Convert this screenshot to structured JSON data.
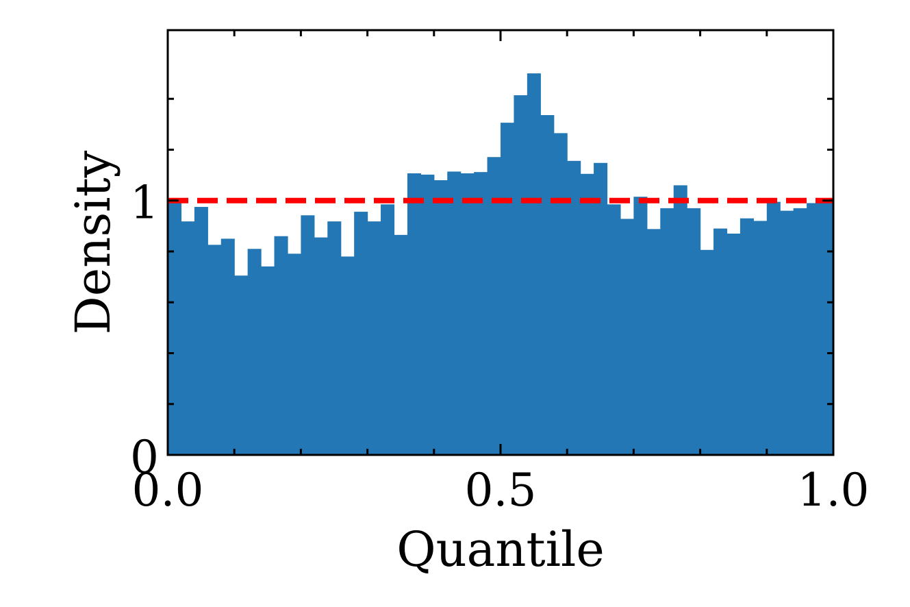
{
  "chart_data": {
    "type": "bar",
    "title": "",
    "xlabel": "Quantile",
    "ylabel": "Density",
    "xlim": [
      0.0,
      1.0
    ],
    "ylim": [
      0.0,
      1.67
    ],
    "grid": false,
    "legend": "none",
    "bin_count": 50,
    "bin_width": 0.02,
    "x_ticks": [
      {
        "value": 0.0,
        "label": "0.0"
      },
      {
        "value": 0.5,
        "label": "0.5"
      },
      {
        "value": 1.0,
        "label": "1.0"
      }
    ],
    "y_ticks": [
      {
        "value": 0,
        "label": "0"
      },
      {
        "value": 1,
        "label": "1"
      }
    ],
    "x_minor_ticks": [
      0.1,
      0.2,
      0.3,
      0.4,
      0.6,
      0.7,
      0.8,
      0.9
    ],
    "y_minor_ticks": [
      0.2,
      0.4,
      0.6,
      0.8,
      1.2,
      1.4
    ],
    "values": [
      1.0,
      0.918,
      0.975,
      0.826,
      0.85,
      0.705,
      0.81,
      0.741,
      0.86,
      0.791,
      0.942,
      0.855,
      0.918,
      0.78,
      0.956,
      0.918,
      0.985,
      0.865,
      1.107,
      1.102,
      1.08,
      1.114,
      1.107,
      1.112,
      1.171,
      1.306,
      1.414,
      1.5,
      1.336,
      1.265,
      1.156,
      1.105,
      1.148,
      0.985,
      0.928,
      1.015,
      0.888,
      0.97,
      1.06,
      0.97,
      0.806,
      0.89,
      0.87,
      0.93,
      0.92,
      0.995,
      0.96,
      0.97,
      0.99,
      1.01
    ],
    "reference_line": {
      "y": 1.0,
      "style": "dashed",
      "color": "#ff0000"
    },
    "bar_color": "#2277b4"
  }
}
